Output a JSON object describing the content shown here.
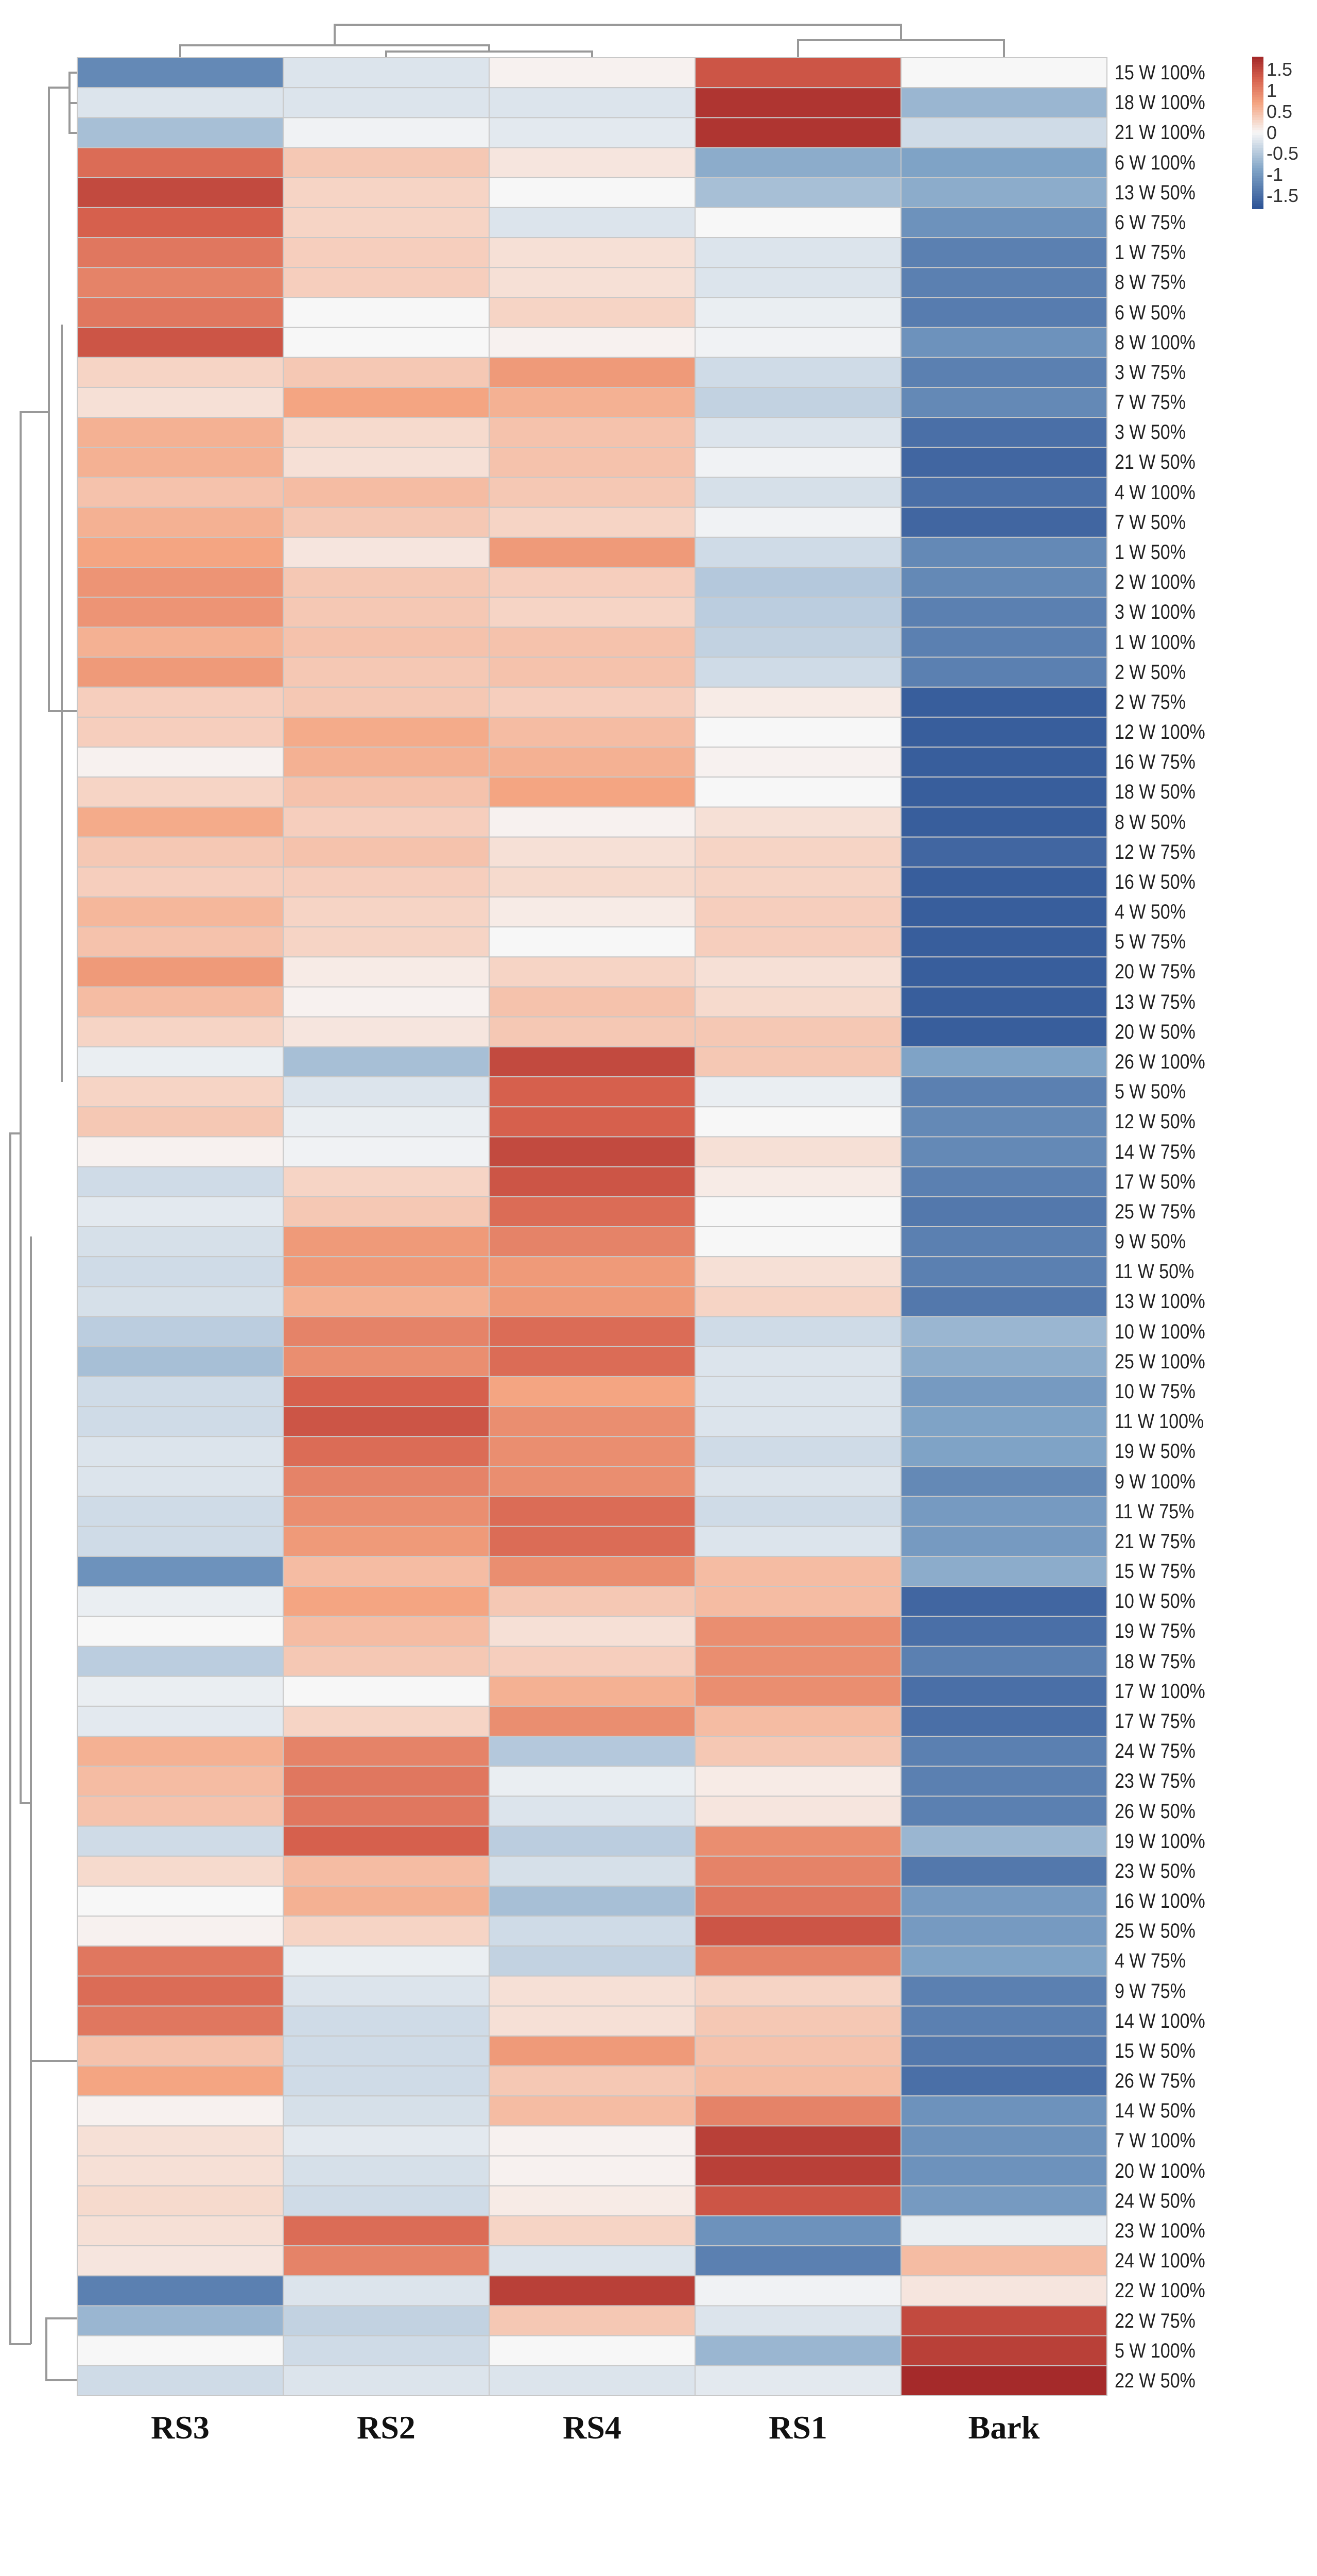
{
  "chart_data": {
    "type": "heatmap",
    "title": "",
    "columns": [
      "RS3",
      "RS2",
      "RS4",
      "RS1",
      "Bark"
    ],
    "rows": [
      "15 W 100%",
      "18 W 100%",
      "21 W 100%",
      "6 W 100%",
      "13 W 50%",
      "6 W 75%",
      "1 W 75%",
      "8 W 75%",
      "6 W 50%",
      "8 W 100%",
      "3 W 75%",
      "7 W 75%",
      "3 W 50%",
      "21 W 50%",
      "4 W 100%",
      "7 W 50%",
      "1 W 50%",
      "2 W 100%",
      "3 W 100%",
      "1 W 100%",
      "2 W 50%",
      "2 W 75%",
      "12 W 100%",
      "16 W 75%",
      "18 W 50%",
      "8 W 50%",
      "12 W 75%",
      "16 W 50%",
      "4 W 50%",
      "5 W 75%",
      "20 W 75%",
      "13 W 75%",
      "20 W 50%",
      "26 W 100%",
      "5 W 50%",
      "12 W 50%",
      "14 W 75%",
      "17 W 50%",
      "25 W 75%",
      "9 W 50%",
      "11 W 50%",
      "13 W 100%",
      "10 W 100%",
      "25 W 100%",
      "10 W 75%",
      "11 W 100%",
      "19 W 50%",
      "9 W 100%",
      "11 W 75%",
      "21 W 75%",
      "15 W 75%",
      "10 W 50%",
      "19 W 75%",
      "18 W 75%",
      "17 W 100%",
      "17 W 75%",
      "24 W 75%",
      "23 W 75%",
      "26 W 50%",
      "19 W 100%",
      "23 W 50%",
      "16 W 100%",
      "25 W 50%",
      "4 W 75%",
      "9 W 75%",
      "14 W 100%",
      "15 W 50%",
      "26 W 75%",
      "14 W 50%",
      "7 W 100%",
      "20 W 100%",
      "24 W 50%",
      "23 W 100%",
      "24 W 100%",
      "22 W 100%",
      "22 W 75%",
      "5 W 100%",
      "22 W 50%"
    ],
    "values": [
      [
        -1.2,
        -0.2,
        0.05,
        1.4,
        0.0
      ],
      [
        -0.2,
        -0.2,
        -0.2,
        1.7,
        -0.7
      ],
      [
        -0.6,
        -0.05,
        -0.15,
        1.7,
        -0.3
      ],
      [
        1.2,
        0.4,
        0.15,
        -0.8,
        -0.9
      ],
      [
        1.5,
        0.3,
        0.0,
        -0.6,
        -0.8
      ],
      [
        1.3,
        0.3,
        -0.2,
        0.0,
        -1.1
      ],
      [
        1.1,
        0.35,
        0.2,
        -0.2,
        -1.3
      ],
      [
        1.0,
        0.35,
        0.2,
        -0.2,
        -1.3
      ],
      [
        1.1,
        0.0,
        0.3,
        -0.1,
        -1.35
      ],
      [
        1.4,
        0.0,
        0.05,
        -0.05,
        -1.1
      ],
      [
        0.3,
        0.4,
        0.8,
        -0.3,
        -1.3
      ],
      [
        0.2,
        0.7,
        0.6,
        -0.4,
        -1.2
      ],
      [
        0.6,
        0.25,
        0.45,
        -0.2,
        -1.5
      ],
      [
        0.6,
        0.2,
        0.45,
        -0.05,
        -1.6
      ],
      [
        0.45,
        0.5,
        0.4,
        -0.25,
        -1.5
      ],
      [
        0.6,
        0.4,
        0.3,
        -0.05,
        -1.6
      ],
      [
        0.7,
        0.15,
        0.8,
        -0.3,
        -1.2
      ],
      [
        0.85,
        0.4,
        0.35,
        -0.5,
        -1.2
      ],
      [
        0.85,
        0.4,
        0.3,
        -0.45,
        -1.3
      ],
      [
        0.6,
        0.45,
        0.45,
        -0.4,
        -1.3
      ],
      [
        0.8,
        0.4,
        0.45,
        -0.3,
        -1.3
      ],
      [
        0.35,
        0.4,
        0.35,
        0.1,
        -1.7
      ],
      [
        0.35,
        0.65,
        0.5,
        0.0,
        -1.7
      ],
      [
        0.05,
        0.6,
        0.6,
        0.05,
        -1.7
      ],
      [
        0.3,
        0.45,
        0.7,
        0.0,
        -1.7
      ],
      [
        0.65,
        0.35,
        0.05,
        0.2,
        -1.7
      ],
      [
        0.4,
        0.45,
        0.2,
        0.3,
        -1.6
      ],
      [
        0.35,
        0.35,
        0.25,
        0.3,
        -1.7
      ],
      [
        0.55,
        0.3,
        0.1,
        0.35,
        -1.7
      ],
      [
        0.45,
        0.3,
        0.0,
        0.35,
        -1.7
      ],
      [
        0.8,
        0.1,
        0.3,
        0.2,
        -1.7
      ],
      [
        0.5,
        0.05,
        0.45,
        0.25,
        -1.7
      ],
      [
        0.3,
        0.15,
        0.4,
        0.4,
        -1.7
      ],
      [
        -0.1,
        -0.6,
        1.5,
        0.4,
        -0.9
      ],
      [
        0.3,
        -0.2,
        1.3,
        -0.1,
        -1.3
      ],
      [
        0.4,
        -0.1,
        1.3,
        0.0,
        -1.2
      ],
      [
        0.05,
        -0.05,
        1.5,
        0.2,
        -1.2
      ],
      [
        -0.3,
        0.3,
        1.4,
        0.1,
        -1.3
      ],
      [
        -0.15,
        0.4,
        1.2,
        0.0,
        -1.4
      ],
      [
        -0.25,
        0.8,
        1.0,
        0.0,
        -1.3
      ],
      [
        -0.3,
        0.8,
        0.8,
        0.2,
        -1.3
      ],
      [
        -0.25,
        0.6,
        0.8,
        0.3,
        -1.4
      ],
      [
        -0.45,
        1.0,
        1.2,
        -0.3,
        -0.7
      ],
      [
        -0.6,
        0.9,
        1.2,
        -0.2,
        -0.8
      ],
      [
        -0.3,
        1.3,
        0.7,
        -0.2,
        -1.0
      ],
      [
        -0.3,
        1.4,
        0.9,
        -0.2,
        -0.9
      ],
      [
        -0.2,
        1.2,
        0.9,
        -0.3,
        -0.9
      ],
      [
        -0.2,
        1.0,
        0.9,
        -0.2,
        -1.2
      ],
      [
        -0.3,
        0.9,
        1.2,
        -0.3,
        -1.0
      ],
      [
        -0.3,
        0.8,
        1.2,
        -0.2,
        -1.0
      ],
      [
        -1.1,
        0.5,
        0.9,
        0.5,
        -0.8
      ],
      [
        -0.1,
        0.7,
        0.4,
        0.5,
        -1.6
      ],
      [
        0.0,
        0.5,
        0.2,
        0.9,
        -1.5
      ],
      [
        -0.45,
        0.4,
        0.35,
        0.9,
        -1.3
      ],
      [
        -0.1,
        0.0,
        0.6,
        0.9,
        -1.5
      ],
      [
        -0.15,
        0.3,
        0.9,
        0.5,
        -1.5
      ],
      [
        0.6,
        1.0,
        -0.5,
        0.4,
        -1.3
      ],
      [
        0.5,
        1.1,
        -0.1,
        0.1,
        -1.3
      ],
      [
        0.45,
        1.1,
        -0.2,
        0.15,
        -1.3
      ],
      [
        -0.3,
        1.3,
        -0.45,
        0.9,
        -0.7
      ],
      [
        0.25,
        0.5,
        -0.25,
        1.0,
        -1.4
      ],
      [
        0.0,
        0.6,
        -0.6,
        1.1,
        -1.0
      ],
      [
        0.05,
        0.3,
        -0.3,
        1.4,
        -1.0
      ],
      [
        1.1,
        -0.1,
        -0.4,
        1.0,
        -0.9
      ],
      [
        1.2,
        -0.2,
        0.2,
        0.3,
        -1.3
      ],
      [
        1.1,
        -0.3,
        0.2,
        0.4,
        -1.3
      ],
      [
        0.45,
        -0.3,
        0.8,
        0.45,
        -1.4
      ],
      [
        0.7,
        -0.3,
        0.4,
        0.5,
        -1.5
      ],
      [
        0.05,
        -0.25,
        0.5,
        1.0,
        -1.1
      ],
      [
        0.2,
        -0.15,
        0.05,
        1.6,
        -1.1
      ],
      [
        0.2,
        -0.25,
        0.05,
        1.6,
        -1.1
      ],
      [
        0.25,
        -0.3,
        0.1,
        1.4,
        -1.0
      ],
      [
        0.2,
        1.2,
        0.3,
        -1.1,
        -0.1
      ],
      [
        0.15,
        1.0,
        -0.2,
        -1.3,
        0.5
      ],
      [
        -1.3,
        -0.2,
        1.6,
        -0.05,
        0.15
      ],
      [
        -0.7,
        -0.4,
        0.4,
        -0.2,
        1.5
      ],
      [
        0.0,
        -0.3,
        0.0,
        -0.7,
        1.6
      ],
      [
        -0.3,
        -0.2,
        -0.2,
        -0.15,
        1.8
      ]
    ],
    "legend": {
      "ticks": [
        "1.5",
        "1",
        "0.5",
        "0",
        "-0.5",
        "-1",
        "-1.5"
      ],
      "placement": "top-right"
    },
    "colors": {
      "low": "#2f5597",
      "mid_low": "#8fb0d0",
      "mid": "#f7f7f7",
      "mid_high": "#f4a582",
      "high": "#a52a2a"
    },
    "vmin": -1.8,
    "vmax": 1.8
  }
}
